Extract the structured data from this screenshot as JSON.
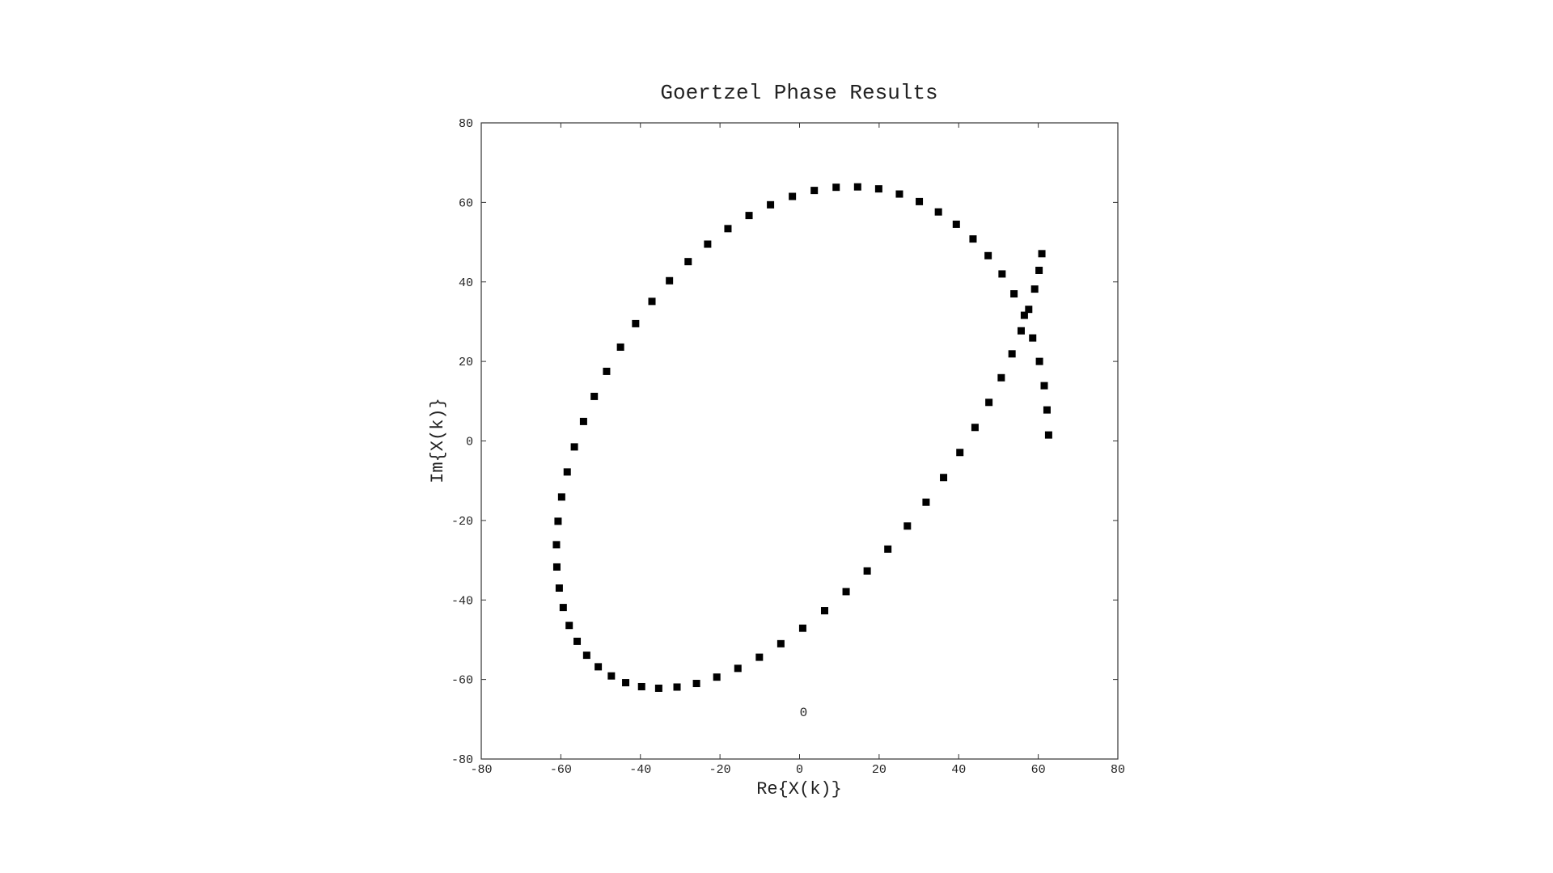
{
  "chart_data": {
    "type": "scatter",
    "title": "Goertzel Phase Results",
    "xlabel": "Re{X(k)}",
    "ylabel": "Im{X(k)}",
    "xlim": [
      -80,
      80
    ],
    "ylim": [
      -80,
      80
    ],
    "xticks": [
      "-80",
      "-60",
      "-40",
      "-20",
      "0",
      "20",
      "40",
      "60",
      "80"
    ],
    "yticks": [
      "80",
      "60",
      "40",
      "20",
      "0",
      "-20",
      "-40",
      "-60",
      "-80"
    ],
    "grid": false,
    "marker": "square",
    "marker_color": "#000000",
    "annotation": {
      "text": "0",
      "x": 1,
      "y": -68
    },
    "series": [
      {
        "x": [
          62.6,
          62.2,
          61.5,
          60.3,
          58.6,
          56.5,
          53.9,
          50.9,
          47.4,
          43.6,
          39.4,
          34.9,
          30.1,
          25.1,
          19.9,
          14.6,
          9.2,
          3.7,
          -1.8,
          -7.3,
          -12.7,
          -18.0,
          -23.1,
          -28.0,
          -32.7,
          -37.1,
          -41.2,
          -45.0,
          -48.5,
          -51.6,
          -54.3,
          -56.6,
          -58.4,
          -59.8,
          -60.7,
          -61.1,
          -61.0,
          -60.4,
          -59.4,
          -57.9,
          -55.9,
          -53.5,
          -50.6,
          -47.3,
          -43.7,
          -39.7,
          -35.4,
          -30.8,
          -25.9,
          -20.8,
          -15.5,
          -10.1,
          -4.7,
          0.8,
          6.3,
          11.7,
          17.0,
          22.2,
          27.1,
          31.8,
          36.2,
          40.3,
          44.1,
          47.6,
          50.7,
          53.4,
          55.7,
          57.6,
          59.1,
          60.2,
          60.9
        ],
        "y": [
          1.5,
          7.8,
          13.9,
          20.0,
          25.9,
          31.6,
          37.0,
          42.0,
          46.6,
          50.8,
          54.5,
          57.6,
          60.2,
          62.1,
          63.4,
          63.9,
          63.8,
          63.0,
          61.5,
          59.4,
          56.7,
          53.4,
          49.5,
          45.1,
          40.3,
          35.1,
          29.5,
          23.6,
          17.5,
          11.2,
          4.9,
          -1.5,
          -7.8,
          -14.1,
          -20.2,
          -26.1,
          -31.7,
          -37.0,
          -41.9,
          -46.4,
          -50.4,
          -53.9,
          -56.8,
          -59.1,
          -60.8,
          -61.8,
          -62.2,
          -61.9,
          -61.0,
          -59.4,
          -57.2,
          -54.4,
          -51.0,
          -47.1,
          -42.7,
          -37.9,
          -32.7,
          -27.2,
          -21.4,
          -15.4,
          -9.2,
          -2.9,
          3.4,
          9.7,
          15.9,
          21.9,
          27.7,
          33.1,
          38.2,
          42.9,
          47.1
        ]
      }
    ]
  }
}
